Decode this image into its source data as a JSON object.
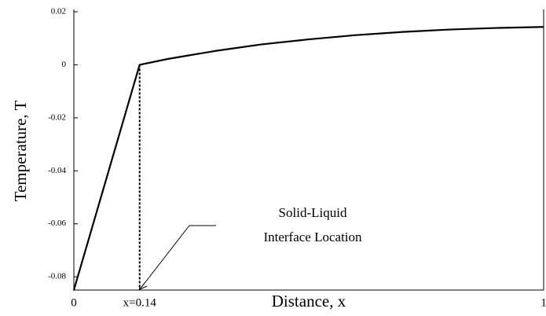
{
  "chart_data": {
    "type": "line",
    "x_label": "Distance, x",
    "y_label": "Temperature, T",
    "x": [
      0,
      0.14,
      0.2,
      0.3,
      0.4,
      0.5,
      0.6,
      0.7,
      0.8,
      0.9,
      1
    ],
    "series": [
      {
        "name": "Temperature",
        "color": "#000000",
        "values": [
          -0.085,
          0,
          0.0022,
          0.0052,
          0.0077,
          0.0096,
          0.0112,
          0.0124,
          0.0133,
          0.0139,
          0.0143
        ]
      }
    ],
    "xlim": [
      0,
      1
    ],
    "xticks": [
      0,
      {
        "value": 0.14,
        "label": "x=0.14"
      },
      1
    ],
    "ylim": [
      -0.085,
      0.02
    ],
    "yticks": [
      0.02,
      0,
      -0.02,
      -0.04,
      -0.06,
      -0.08
    ],
    "annotation": [
      "Solid-Liquid",
      "Interface Location"
    ]
  }
}
